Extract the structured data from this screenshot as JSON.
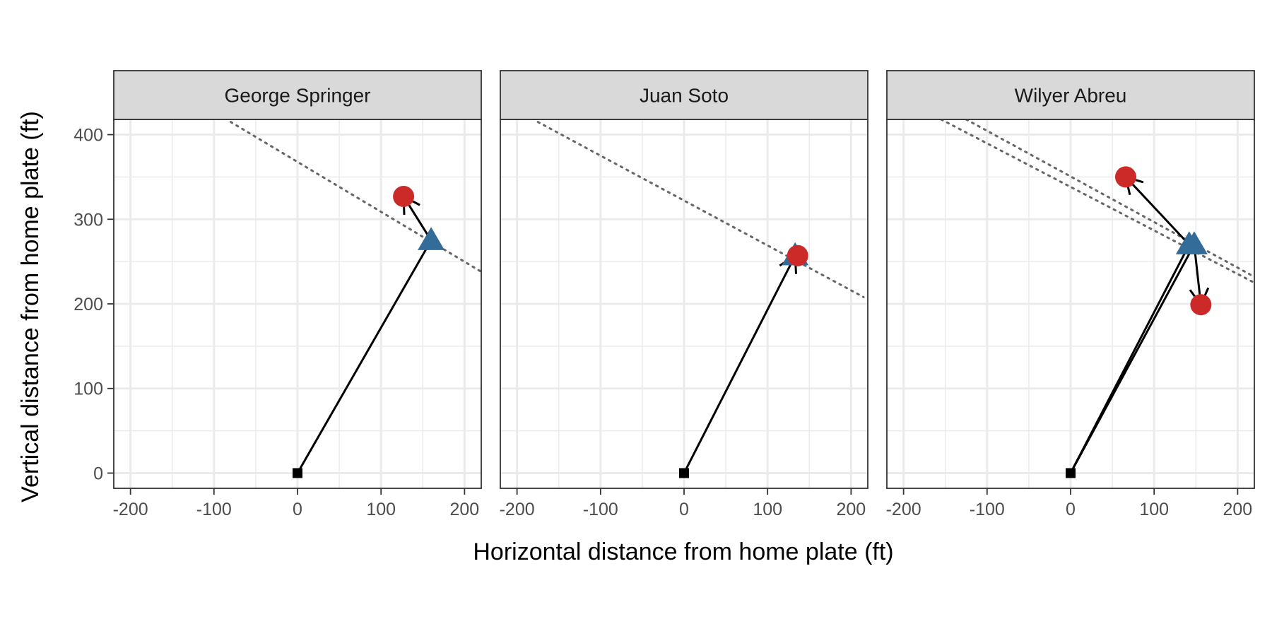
{
  "chart_data": {
    "type": "scatter",
    "xlabel": "Horizontal distance from home plate (ft)",
    "ylabel": "Vertical distance from home plate (ft)",
    "xlim": [
      -220,
      220
    ],
    "ylim": [
      -18,
      418
    ],
    "x_ticks": [
      -200,
      -100,
      0,
      100,
      200
    ],
    "x_tick_labels": [
      "-200",
      "-100",
      "0",
      "100",
      "200"
    ],
    "y_ticks": [
      0,
      100,
      200,
      300,
      400
    ],
    "y_tick_labels": [
      "0",
      "100",
      "200",
      "300",
      "400"
    ],
    "grid": true,
    "colors": {
      "circle": "#cc2929",
      "triangle": "#336b99",
      "origin": "#000000",
      "path": "#000000",
      "wall": "#666666"
    },
    "panels": [
      {
        "name": "George Springer",
        "walls": [
          {
            "x1": -80,
            "y1": 415,
            "x2": 220,
            "y2": 238
          }
        ],
        "paths": [
          {
            "x": [
              0,
              160,
              127
            ],
            "y": [
              0,
              275,
              327
            ]
          }
        ],
        "triangles": [
          {
            "x": 160,
            "y": 275
          }
        ],
        "circles": [
          {
            "x": 127,
            "y": 327
          }
        ]
      },
      {
        "name": "Juan Soto",
        "walls": [
          {
            "x1": -175,
            "y1": 415,
            "x2": 215,
            "y2": 208
          }
        ],
        "paths": [
          {
            "x": [
              0,
              133
            ],
            "y": [
              0,
              257
            ]
          }
        ],
        "triangles": [
          {
            "x": 133,
            "y": 257
          }
        ],
        "circles": [
          {
            "x": 136,
            "y": 257
          }
        ]
      },
      {
        "name": "Wilyer Abreu",
        "walls": [
          {
            "x1": -155,
            "y1": 418,
            "x2": 220,
            "y2": 225
          },
          {
            "x1": -125,
            "y1": 418,
            "x2": 220,
            "y2": 232
          }
        ],
        "paths": [
          {
            "x": [
              0,
              142,
              66
            ],
            "y": [
              0,
              270,
              350
            ]
          },
          {
            "x": [
              0,
              148,
              156
            ],
            "y": [
              0,
              270,
              199
            ]
          }
        ],
        "triangles": [
          {
            "x": 142,
            "y": 270
          },
          {
            "x": 148,
            "y": 270
          }
        ],
        "circles": [
          {
            "x": 66,
            "y": 350
          },
          {
            "x": 156,
            "y": 199
          }
        ]
      }
    ]
  }
}
